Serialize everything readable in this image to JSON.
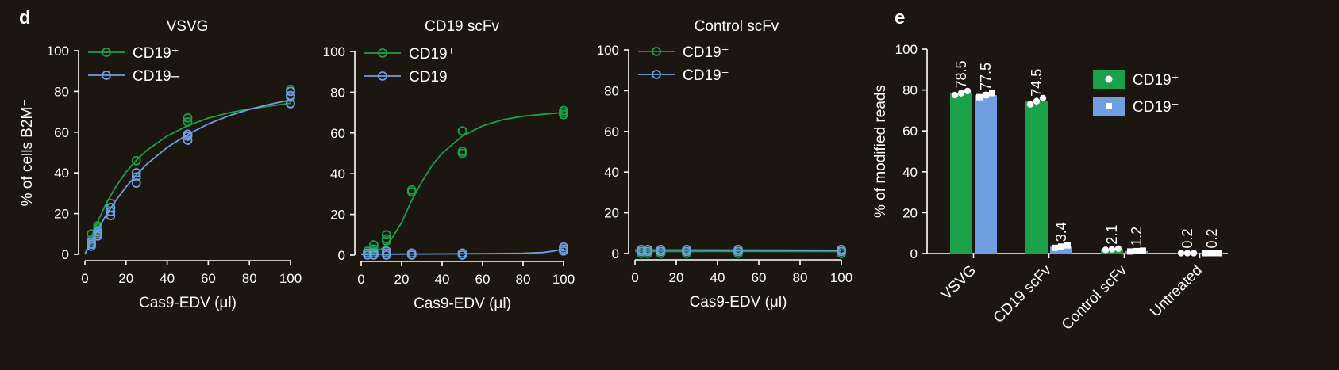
{
  "panel_labels": [
    "d",
    "e"
  ],
  "colors": {
    "background": "#1b1610",
    "cd19_pos": "#1aa14a",
    "cd19_neg": "#6f9ee3",
    "axis": "#ffffff"
  },
  "chart_data": [
    {
      "type": "scatter",
      "title": "VSVG",
      "xlabel": "Cas9-EDV (μl)",
      "ylabel": "% of cells B2M⁻",
      "xlim": [
        0,
        100
      ],
      "ylim": [
        0,
        100
      ],
      "xticks": [
        0,
        20,
        40,
        60,
        80,
        100
      ],
      "yticks": [
        0,
        20,
        40,
        60,
        80,
        100
      ],
      "legend": {
        "position": "top-left",
        "entries": [
          "CD19⁺",
          "CD19–"
        ]
      },
      "series": [
        {
          "name": "CD19⁺",
          "color": "#1aa14a",
          "points": [
            [
              3.125,
              5
            ],
            [
              3.125,
              7
            ],
            [
              3.125,
              10
            ],
            [
              6.25,
              12
            ],
            [
              6.25,
              13
            ],
            [
              6.25,
              14
            ],
            [
              12.5,
              21
            ],
            [
              12.5,
              23
            ],
            [
              12.5,
              25
            ],
            [
              25,
              38
            ],
            [
              25,
              40
            ],
            [
              25,
              46
            ],
            [
              50,
              59
            ],
            [
              50,
              65
            ],
            [
              50,
              67
            ],
            [
              100,
              74
            ],
            [
              100,
              77
            ],
            [
              100,
              81
            ]
          ],
          "fit": [
            [
              0,
              0
            ],
            [
              5,
              13.4
            ],
            [
              10,
              24.3
            ],
            [
              15,
              33.2
            ],
            [
              20,
              40.4
            ],
            [
              25,
              46.2
            ],
            [
              30,
              51.0
            ],
            [
              40,
              58.1
            ],
            [
              50,
              63.2
            ],
            [
              60,
              66.9
            ],
            [
              70,
              69.5
            ],
            [
              80,
              71.4
            ],
            [
              90,
              72.8
            ],
            [
              100,
              74.2
            ]
          ]
        },
        {
          "name": "CD19–",
          "color": "#6f9ee3",
          "points": [
            [
              3.125,
              4
            ],
            [
              3.125,
              5
            ],
            [
              3.125,
              6
            ],
            [
              6.25,
              9
            ],
            [
              6.25,
              10
            ],
            [
              6.25,
              11
            ],
            [
              12.5,
              19
            ],
            [
              12.5,
              21
            ],
            [
              12.5,
              23
            ],
            [
              25,
              35
            ],
            [
              25,
              38
            ],
            [
              25,
              40
            ],
            [
              50,
              56
            ],
            [
              50,
              58
            ],
            [
              50,
              59
            ],
            [
              100,
              74
            ],
            [
              100,
              78
            ],
            [
              100,
              80
            ]
          ],
          "fit": [
            [
              0,
              0
            ],
            [
              5,
              9.9
            ],
            [
              10,
              18.8
            ],
            [
              15,
              26.4
            ],
            [
              20,
              33.1
            ],
            [
              25,
              39.0
            ],
            [
              30,
              44.2
            ],
            [
              40,
              52.5
            ],
            [
              50,
              58.9
            ],
            [
              60,
              64.0
            ],
            [
              70,
              68.0
            ],
            [
              80,
              71.2
            ],
            [
              90,
              73.7
            ],
            [
              100,
              75.8
            ]
          ]
        }
      ]
    },
    {
      "type": "scatter",
      "title": "CD19 scFv",
      "xlabel": "Cas9-EDV (μl)",
      "ylabel": "",
      "xlim": [
        0,
        100
      ],
      "ylim": [
        0,
        100
      ],
      "xticks": [
        0,
        20,
        40,
        60,
        80,
        100
      ],
      "yticks": [
        0,
        20,
        40,
        60,
        80,
        100
      ],
      "legend": {
        "position": "top-left",
        "entries": [
          "CD19⁺",
          "CD19⁻"
        ]
      },
      "series": [
        {
          "name": "CD19⁺",
          "color": "#1aa14a",
          "points": [
            [
              3.125,
              1
            ],
            [
              3.125,
              2
            ],
            [
              6.25,
              2
            ],
            [
              6.25,
              3
            ],
            [
              6.25,
              5
            ],
            [
              12.5,
              7
            ],
            [
              12.5,
              8
            ],
            [
              12.5,
              10
            ],
            [
              25,
              31
            ],
            [
              25,
              32
            ],
            [
              50,
              50
            ],
            [
              50,
              51
            ],
            [
              50,
              61
            ],
            [
              100,
              69
            ],
            [
              100,
              70
            ],
            [
              100,
              71
            ]
          ],
          "fit": [
            [
              0,
              0.5
            ],
            [
              5,
              1.2
            ],
            [
              10,
              3.0
            ],
            [
              15,
              8
            ],
            [
              20,
              16
            ],
            [
              25,
              27
            ],
            [
              30,
              36
            ],
            [
              35,
              44
            ],
            [
              40,
              50
            ],
            [
              50,
              58.5
            ],
            [
              60,
              63.5
            ],
            [
              70,
              66.5
            ],
            [
              80,
              68.2
            ],
            [
              90,
              69.2
            ],
            [
              100,
              70
            ]
          ]
        },
        {
          "name": "CD19⁻",
          "color": "#6f9ee3",
          "points": [
            [
              3.125,
              0
            ],
            [
              3.125,
              1
            ],
            [
              6.25,
              0
            ],
            [
              6.25,
              1
            ],
            [
              12.5,
              0
            ],
            [
              12.5,
              1
            ],
            [
              12.5,
              2
            ],
            [
              25,
              0
            ],
            [
              25,
              1
            ],
            [
              50,
              0
            ],
            [
              50,
              1
            ],
            [
              100,
              2
            ],
            [
              100,
              3
            ],
            [
              100,
              4
            ]
          ],
          "fit": [
            [
              0,
              0.4
            ],
            [
              20,
              0.5
            ],
            [
              40,
              0.6
            ],
            [
              60,
              0.7
            ],
            [
              80,
              0.9
            ],
            [
              90,
              1.3
            ],
            [
              95,
              2.0
            ],
            [
              100,
              3.0
            ]
          ]
        }
      ]
    },
    {
      "type": "scatter",
      "title": "Control scFv",
      "xlabel": "Cas9-EDV (μl)",
      "ylabel": "",
      "xlim": [
        0,
        100
      ],
      "ylim": [
        0,
        100
      ],
      "xticks": [
        0,
        20,
        40,
        60,
        80,
        100
      ],
      "yticks": [
        0,
        20,
        40,
        60,
        80,
        100
      ],
      "legend": {
        "position": "top-left",
        "entries": [
          "CD19⁺",
          "CD19⁻"
        ]
      },
      "series": [
        {
          "name": "CD19⁺",
          "color": "#1aa14a",
          "points": [
            [
              3.125,
              0
            ],
            [
              3.125,
              1
            ],
            [
              6.25,
              0
            ],
            [
              6.25,
              1
            ],
            [
              12.5,
              0
            ],
            [
              12.5,
              1
            ],
            [
              25,
              0
            ],
            [
              25,
              1
            ],
            [
              50,
              0
            ],
            [
              50,
              1
            ],
            [
              100,
              0
            ],
            [
              100,
              1
            ],
            [
              100,
              2
            ]
          ],
          "fit": [
            [
              0,
              1
            ],
            [
              100,
              1
            ]
          ]
        },
        {
          "name": "CD19⁻",
          "color": "#6f9ee3",
          "points": [
            [
              3.125,
              1
            ],
            [
              3.125,
              2
            ],
            [
              6.25,
              1
            ],
            [
              6.25,
              2
            ],
            [
              12.5,
              1
            ],
            [
              12.5,
              2
            ],
            [
              25,
              1
            ],
            [
              25,
              2
            ],
            [
              50,
              1
            ],
            [
              50,
              2
            ],
            [
              100,
              1
            ],
            [
              100,
              2
            ]
          ],
          "fit": [
            [
              0,
              1.8
            ],
            [
              100,
              1.6
            ]
          ]
        }
      ]
    },
    {
      "type": "bar",
      "title": "",
      "xlabel": "",
      "ylabel": "% of modified reads",
      "ylim": [
        0,
        100
      ],
      "yticks": [
        0,
        20,
        40,
        60,
        80,
        100
      ],
      "categories": [
        "VSVG",
        "CD19 scFv",
        "Control scFv",
        "Untreated"
      ],
      "legend": {
        "position": "top-right",
        "entries": [
          "CD19⁺",
          "CD19⁻"
        ]
      },
      "series": [
        {
          "name": "CD19⁺",
          "color": "#1aa14a",
          "marker": "circle",
          "values": [
            78.5,
            74.5,
            2.1,
            0.2
          ],
          "labels": [
            "78.5",
            "74.5",
            "2.1",
            "0.2"
          ],
          "points": [
            [
              77.5,
              78.5,
              79.5
            ],
            [
              73.0,
              74.5,
              76.0
            ],
            [
              1.8,
              2.1,
              2.4
            ],
            [
              0.2,
              0.2,
              0.2
            ]
          ]
        },
        {
          "name": "CD19⁻",
          "color": "#6f9ee3",
          "marker": "square",
          "values": [
            77.5,
            3.4,
            1.2,
            0.2
          ],
          "labels": [
            "77.5",
            "3.4",
            "1.2",
            "0.2"
          ],
          "points": [
            [
              76.5,
              77.5,
              78.5
            ],
            [
              2.8,
              3.4,
              4.0
            ],
            [
              1.0,
              1.2,
              1.4
            ],
            [
              0.2,
              0.2,
              0.2
            ]
          ]
        }
      ]
    }
  ]
}
